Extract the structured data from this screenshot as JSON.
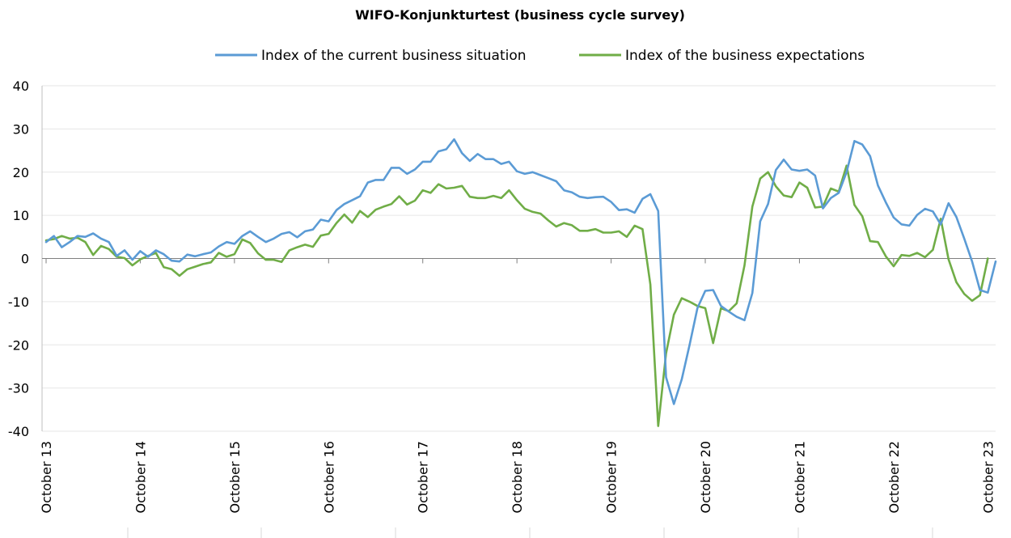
{
  "chart_data": {
    "type": "line",
    "title": "WIFO-Konjunkturtest (business cycle survey)",
    "xlabel": "",
    "ylabel": "",
    "ylim": [
      -40,
      40
    ],
    "yticks": [
      40,
      30,
      20,
      10,
      0,
      -10,
      -20,
      -30,
      -40
    ],
    "xtick_labels": [
      "October 13",
      "October 14",
      "October 15",
      "October 16",
      "October 17",
      "October 18",
      "October 19",
      "October 20",
      "October 21",
      "October 22",
      "October 23"
    ],
    "grid": "horizontal",
    "legend_position": "top",
    "series": [
      {
        "name": "Index of the current business situation",
        "color": "#5b9bd5",
        "values": [
          3.8,
          5.2,
          2.6,
          3.8,
          5.2,
          5.0,
          5.8,
          4.6,
          3.8,
          0.6,
          1.9,
          -0.3,
          1.7,
          0.4,
          1.9,
          1.0,
          -0.5,
          -0.7,
          0.9,
          0.5,
          1.0,
          1.4,
          2.8,
          3.8,
          3.4,
          5.2,
          6.3,
          5.0,
          3.8,
          4.6,
          5.7,
          6.1,
          4.9,
          6.3,
          6.7,
          9.0,
          8.6,
          11.2,
          12.6,
          13.5,
          14.4,
          17.6,
          18.2,
          18.2,
          21.0,
          21.0,
          19.6,
          20.6,
          22.4,
          22.4,
          24.8,
          25.3,
          27.6,
          24.4,
          22.6,
          24.2,
          23.0,
          23.0,
          21.9,
          22.4,
          20.2,
          19.6,
          20.0,
          19.3,
          18.6,
          17.9,
          15.8,
          15.3,
          14.3,
          14.0,
          14.2,
          14.3,
          13.1,
          11.2,
          11.4,
          10.6,
          13.8,
          14.9,
          11.0,
          -27.5,
          -33.7,
          -28.0,
          -20.0,
          -11.5,
          -7.5,
          -7.3,
          -11.0,
          -12.3,
          -13.5,
          -14.3,
          -8.0,
          8.6,
          12.6,
          20.5,
          22.9,
          20.6,
          20.3,
          20.6,
          19.2,
          11.6,
          14.0,
          15.2,
          20.0,
          27.2,
          26.4,
          23.7,
          16.9,
          13.0,
          9.5,
          7.9,
          7.6,
          10.1,
          11.5,
          10.9,
          7.9,
          12.8,
          9.6,
          4.6,
          -0.7,
          -7.3,
          -7.9,
          -0.7
        ]
      },
      {
        "name": "Index of the business expectations",
        "color": "#70ad47",
        "values": [
          4.2,
          4.5,
          5.2,
          4.6,
          4.8,
          3.8,
          0.8,
          2.9,
          2.2,
          0.4,
          0.1,
          -1.6,
          -0.2,
          0.6,
          1.3,
          -2.0,
          -2.5,
          -4.0,
          -2.5,
          -1.9,
          -1.3,
          -0.9,
          1.3,
          0.4,
          1.0,
          4.4,
          3.6,
          1.2,
          -0.3,
          -0.3,
          -0.8,
          1.9,
          2.6,
          3.2,
          2.7,
          5.3,
          5.7,
          8.2,
          10.2,
          8.3,
          11.0,
          9.6,
          11.3,
          12.0,
          12.6,
          14.4,
          12.5,
          13.4,
          15.8,
          15.2,
          17.2,
          16.2,
          16.4,
          16.8,
          14.3,
          14.0,
          14.0,
          14.5,
          14.0,
          15.8,
          13.5,
          11.5,
          10.8,
          10.4,
          8.8,
          7.4,
          8.2,
          7.7,
          6.4,
          6.4,
          6.8,
          6.0,
          6.0,
          6.3,
          5.0,
          7.6,
          6.8,
          -6.0,
          -38.8,
          -22.0,
          -13.0,
          -9.2,
          -10.0,
          -11.0,
          -11.5,
          -19.6,
          -11.5,
          -12.2,
          -10.4,
          -1.6,
          12.0,
          18.5,
          20.0,
          16.7,
          14.6,
          14.2,
          17.6,
          16.4,
          11.8,
          12.0,
          16.2,
          15.5,
          21.5,
          12.4,
          9.8,
          4.0,
          3.8,
          0.5,
          -1.8,
          0.8,
          0.6,
          1.3,
          0.3,
          2.0,
          9.2,
          -0.2,
          -5.5,
          -8.2,
          -9.8,
          -8.5,
          0.0
        ]
      }
    ]
  }
}
